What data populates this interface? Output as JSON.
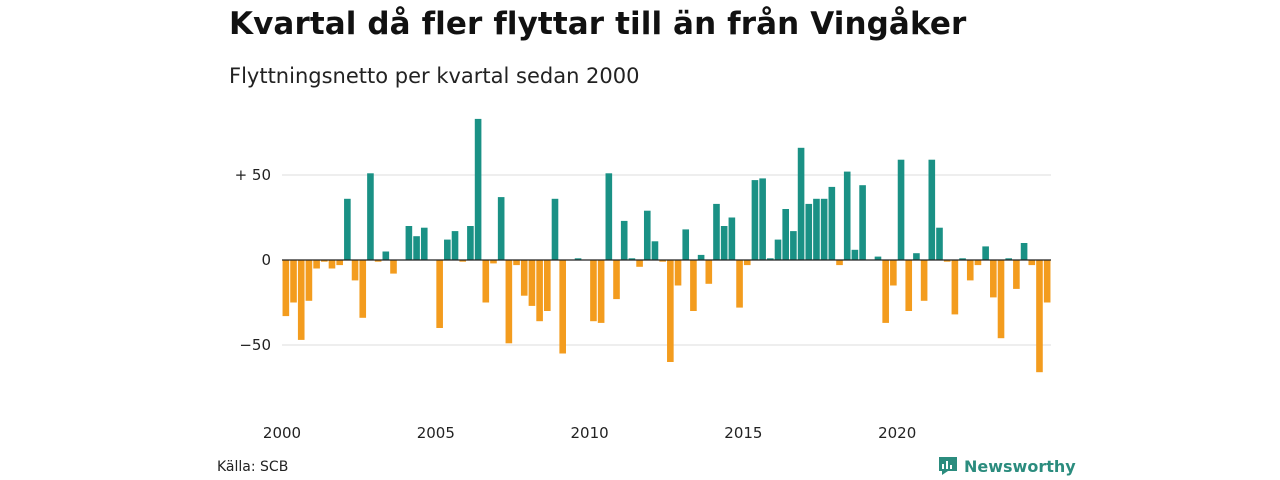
{
  "title": "Kvartal då fler flyttar till än från Vingåker",
  "subtitle": "Flyttningsnetto per kvartal sedan 2000",
  "source": "Källa: SCB",
  "brand": "Newsworthy",
  "colors": {
    "positive": "#1a9185",
    "negative": "#f39c1e",
    "grid": "#dddddd",
    "zero_line": "#222222",
    "brand": "#2b8c7e"
  },
  "chart_data": {
    "type": "bar",
    "title": "Kvartal då fler flyttar till än från Vingåker",
    "subtitle": "Flyttningsnetto per kvartal sedan 2000",
    "xlabel": "",
    "ylabel": "",
    "grid": true,
    "ylim": [
      -72,
      85
    ],
    "yticks": [
      {
        "value": 50,
        "label": "+ 50"
      },
      {
        "value": 0,
        "label": "0"
      },
      {
        "value": -50,
        "label": "−50"
      }
    ],
    "xticks": [
      "2000",
      "2005",
      "2010",
      "2015",
      "2020"
    ],
    "start_year": 2000,
    "values": [
      -33,
      -25,
      -47,
      -24,
      -5,
      -1,
      -5,
      -3,
      36,
      -12,
      -34,
      51,
      -1,
      5,
      -8,
      0,
      20,
      14,
      19,
      0,
      -40,
      12,
      17,
      -1,
      20,
      83,
      -25,
      -2,
      37,
      -49,
      -3,
      -21,
      -27,
      -36,
      -30,
      36,
      -55,
      0,
      1,
      0,
      -36,
      -37,
      51,
      -23,
      23,
      1,
      -4,
      29,
      11,
      -1,
      -60,
      -15,
      18,
      -30,
      3,
      -14,
      33,
      20,
      25,
      -28,
      -3,
      47,
      48,
      1,
      12,
      30,
      17,
      66,
      33,
      36,
      36,
      43,
      -3,
      52,
      6,
      44,
      0,
      2,
      -37,
      -15,
      59,
      -30,
      4,
      -24,
      59,
      19,
      -1,
      -32,
      1,
      -12,
      -3,
      8,
      -22,
      -46,
      1,
      -17,
      10,
      -3,
      -66,
      -25
    ]
  }
}
